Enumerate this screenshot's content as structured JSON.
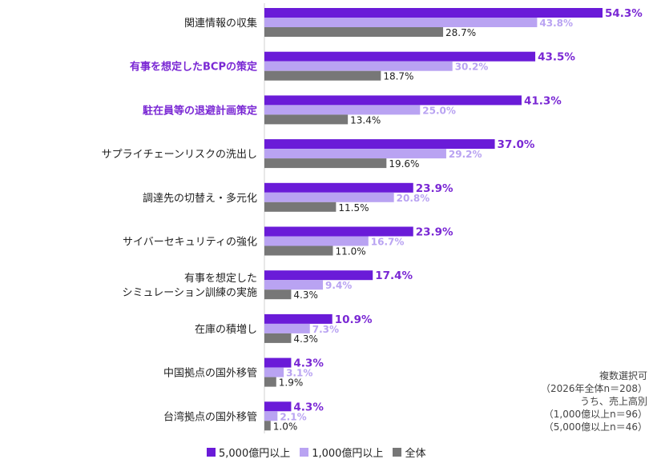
{
  "chart_data": {
    "type": "bar",
    "orientation": "horizontal",
    "title": "",
    "xlabel": "",
    "ylabel": "",
    "xlim": [
      0,
      55
    ],
    "grid": false,
    "categories": [
      "関連情報の収集",
      "有事を想定したBCPの策定",
      "駐在員等の退避計画策定",
      "サプライチェーンリスクの洗出し",
      "調達先の切替え・多元化",
      "サイバーセキュリティの強化",
      "有事を想定した\nシミュレーション訓練の実施",
      "在庫の積増し",
      "中国拠点の国外移管",
      "台湾拠点の国外移管"
    ],
    "highlighted_categories": [
      1,
      2
    ],
    "series": [
      {
        "name": "5,000億円以上",
        "color": "#6a1bd8",
        "label_color": "#7a28d4",
        "values": [
          54.3,
          43.5,
          41.3,
          37.0,
          23.9,
          23.9,
          17.4,
          10.9,
          4.3,
          4.3
        ],
        "labels": [
          "54.3%",
          "43.5%",
          "41.3%",
          "37.0%",
          "23.9%",
          "23.9%",
          "17.4%",
          "10.9%",
          "4.3%",
          "4.3%"
        ]
      },
      {
        "name": "1,000億円以上",
        "color": "#b9a3f2",
        "label_color": "#b9a3f2",
        "values": [
          43.8,
          30.2,
          25.0,
          29.2,
          20.8,
          16.7,
          9.4,
          7.3,
          3.1,
          2.1
        ],
        "labels": [
          "43.8%",
          "30.2%",
          "25.0%",
          "29.2%",
          "20.8%",
          "16.7%",
          "9.4%",
          "7.3%",
          "3.1%",
          "2.1%"
        ]
      },
      {
        "name": "全体",
        "color": "#777777",
        "label_color": "#222222",
        "values": [
          28.7,
          18.7,
          13.4,
          19.6,
          11.5,
          11.0,
          4.3,
          4.3,
          1.9,
          1.0
        ],
        "labels": [
          "28.7%",
          "18.7%",
          "13.4%",
          "19.6%",
          "11.5%",
          "11.0%",
          "4.3%",
          "4.3%",
          "1.9%",
          "1.0%"
        ]
      }
    ],
    "legend_position": "bottom"
  },
  "legend": {
    "items": [
      "5,000億円以上",
      "1,000億円以上",
      "全体"
    ]
  },
  "note": {
    "lines": [
      "複数選択可",
      "（2026年全体n＝208）",
      "うち、売上高別",
      "（1,000億以上n＝96）",
      "（5,000億以上n＝46）"
    ]
  }
}
